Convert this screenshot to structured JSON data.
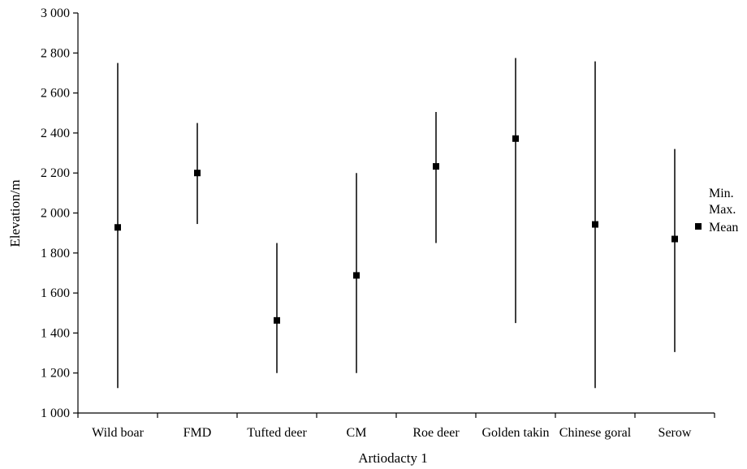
{
  "chart_data": {
    "type": "range",
    "xlabel": "Artiodacty 1",
    "ylabel": "Elevation/m",
    "ylim": [
      1000,
      3000
    ],
    "yticks": [
      1000,
      1200,
      1400,
      1600,
      1800,
      2000,
      2200,
      2400,
      2600,
      2800,
      3000
    ],
    "ytick_labels": [
      "1 000",
      "1 200",
      "1 400",
      "1 600",
      "1 800",
      "2 000",
      "2 200",
      "2 400",
      "2 600",
      "2 800",
      "3 000"
    ],
    "grid": false,
    "legend_position": "right",
    "legend": [
      "Min.",
      "Max.",
      "Mean"
    ],
    "categories": [
      "Wild boar",
      "FMD",
      "Tufted deer",
      "CM",
      "Roe deer",
      "Golden takin",
      "Chinese goral",
      "Serow"
    ],
    "min": [
      1125,
      1945,
      1200,
      1200,
      1850,
      1450,
      1125,
      1305
    ],
    "max": [
      2750,
      2450,
      1850,
      2200,
      2505,
      2775,
      2758,
      2320
    ],
    "mean": [
      1928,
      2200,
      1463,
      1688,
      2233,
      2372,
      1943,
      1870
    ]
  }
}
